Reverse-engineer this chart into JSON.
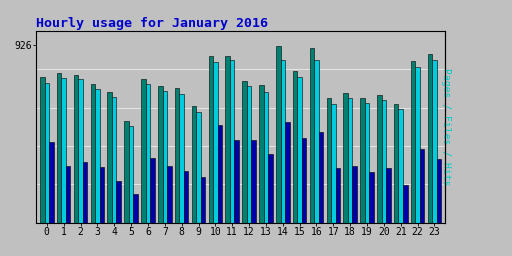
{
  "title": "Hourly usage for January 2016",
  "ylabel": "Pages / Files / Hits",
  "xlabel_ticks": [
    0,
    1,
    2,
    3,
    4,
    5,
    6,
    7,
    8,
    9,
    10,
    11,
    12,
    13,
    14,
    15,
    16,
    17,
    18,
    19,
    20,
    21,
    22,
    23
  ],
  "ytick_label": "926",
  "ymax": 1000,
  "ytick_pos": 926,
  "background_color": "#c0c0c0",
  "title_color": "#0000cc",
  "ylabel_color": "#00cccc",
  "col_pages": "#008070",
  "col_files": "#00ccdd",
  "col_hits": "#0000aa",
  "pages": [
    760,
    780,
    770,
    720,
    680,
    530,
    750,
    710,
    700,
    610,
    870,
    870,
    740,
    715,
    920,
    790,
    910,
    650,
    675,
    650,
    665,
    620,
    840,
    880
  ],
  "files": [
    730,
    755,
    750,
    695,
    655,
    505,
    720,
    685,
    670,
    575,
    835,
    845,
    710,
    680,
    850,
    760,
    850,
    620,
    650,
    625,
    640,
    590,
    810,
    850
  ],
  "hits": [
    420,
    295,
    315,
    290,
    215,
    150,
    335,
    295,
    270,
    240,
    510,
    430,
    430,
    360,
    525,
    440,
    470,
    285,
    295,
    265,
    285,
    195,
    385,
    330
  ]
}
